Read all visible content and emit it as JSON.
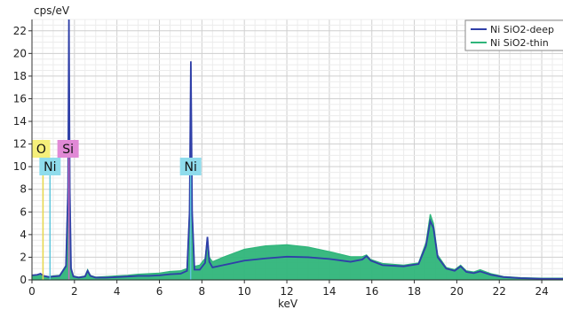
{
  "chart_data": {
    "type": "line",
    "ylabel": "cps/eV",
    "xlabel": "keV",
    "xlim": [
      0,
      25
    ],
    "ylim": [
      0,
      23
    ],
    "xticks": [
      0,
      2,
      4,
      6,
      8,
      10,
      12,
      14,
      16,
      18,
      20,
      22,
      24
    ],
    "yticks": [
      0,
      2,
      4,
      6,
      8,
      10,
      12,
      14,
      16,
      18,
      20,
      22
    ],
    "grid": true,
    "legend_position": "top-right",
    "series": [
      {
        "name": "Ni SiO2-deep",
        "color": "#2f3fa8",
        "style": "line",
        "x": [
          0.0,
          0.25,
          0.4,
          0.55,
          0.8,
          1.0,
          1.3,
          1.6,
          1.7,
          1.74,
          1.78,
          1.84,
          1.95,
          2.2,
          2.5,
          2.62,
          2.75,
          3.0,
          3.5,
          4.0,
          4.5,
          5.0,
          5.5,
          6.0,
          6.5,
          7.0,
          7.3,
          7.42,
          7.48,
          7.54,
          7.65,
          7.9,
          8.15,
          8.26,
          8.35,
          8.5,
          9.0,
          10.0,
          11.0,
          12.0,
          13.0,
          14.0,
          15.0,
          15.55,
          15.75,
          15.95,
          16.5,
          17.5,
          18.2,
          18.55,
          18.75,
          18.9,
          19.1,
          19.5,
          19.9,
          20.18,
          20.45,
          20.8,
          21.1,
          21.6,
          22.2,
          23.0,
          24.0,
          25.0
        ],
        "y": [
          0.4,
          0.45,
          0.55,
          0.35,
          0.25,
          0.3,
          0.35,
          1.2,
          8.0,
          23.0,
          8.0,
          1.0,
          0.3,
          0.2,
          0.3,
          0.8,
          0.35,
          0.2,
          0.2,
          0.25,
          0.3,
          0.35,
          0.35,
          0.4,
          0.5,
          0.55,
          0.8,
          6.0,
          19.3,
          6.0,
          0.9,
          0.9,
          1.5,
          3.8,
          1.6,
          1.1,
          1.3,
          1.7,
          1.9,
          2.05,
          2.0,
          1.85,
          1.6,
          1.8,
          2.1,
          1.7,
          1.3,
          1.2,
          1.4,
          3.0,
          5.2,
          4.6,
          2.0,
          1.0,
          0.8,
          1.2,
          0.7,
          0.6,
          0.75,
          0.45,
          0.25,
          0.15,
          0.1,
          0.1
        ]
      },
      {
        "name": "Ni SiO2-thin",
        "color": "#2fb57a",
        "style": "filled",
        "x": [
          0.0,
          0.25,
          0.4,
          0.55,
          0.8,
          1.0,
          1.3,
          1.6,
          1.7,
          1.74,
          1.78,
          1.84,
          1.95,
          2.2,
          2.5,
          2.62,
          2.75,
          3.0,
          3.5,
          4.0,
          4.5,
          5.0,
          5.5,
          6.0,
          6.5,
          7.0,
          7.3,
          7.42,
          7.48,
          7.54,
          7.65,
          7.9,
          8.15,
          8.26,
          8.35,
          8.5,
          9.0,
          10.0,
          11.0,
          12.0,
          13.0,
          14.0,
          15.0,
          15.55,
          15.75,
          15.95,
          16.5,
          17.5,
          18.2,
          18.55,
          18.75,
          18.9,
          19.1,
          19.5,
          19.9,
          20.18,
          20.45,
          20.8,
          21.1,
          21.6,
          22.2,
          23.0,
          24.0,
          25.0
        ],
        "y": [
          0.4,
          0.45,
          0.55,
          0.35,
          0.3,
          0.35,
          0.4,
          1.3,
          8.5,
          23.0,
          8.5,
          1.1,
          0.35,
          0.25,
          0.35,
          0.9,
          0.4,
          0.25,
          0.3,
          0.35,
          0.4,
          0.5,
          0.55,
          0.6,
          0.75,
          0.8,
          1.0,
          6.2,
          19.0,
          6.2,
          1.2,
          1.3,
          1.9,
          3.7,
          2.0,
          1.6,
          2.0,
          2.7,
          3.0,
          3.1,
          2.9,
          2.5,
          2.05,
          2.05,
          2.2,
          1.8,
          1.45,
          1.3,
          1.5,
          3.3,
          5.8,
          5.0,
          2.2,
          1.1,
          0.9,
          1.3,
          0.8,
          0.7,
          0.9,
          0.55,
          0.3,
          0.2,
          0.15,
          0.15
        ]
      }
    ],
    "element_labels": [
      {
        "text": "O",
        "x": 0.52,
        "color": "#f5ef7a",
        "line_color": "#e8d84a"
      },
      {
        "text": "Si",
        "x": 1.74,
        "color": "#e189d6",
        "line_color": "#c96bbd"
      },
      {
        "text": "Ni",
        "x": 0.85,
        "color": "#8fdcec",
        "line_color": "#5ec6dc"
      },
      {
        "text": "Ni",
        "x": 7.47,
        "color": "#8fdcec",
        "line_color": "#5ec6dc"
      }
    ]
  }
}
